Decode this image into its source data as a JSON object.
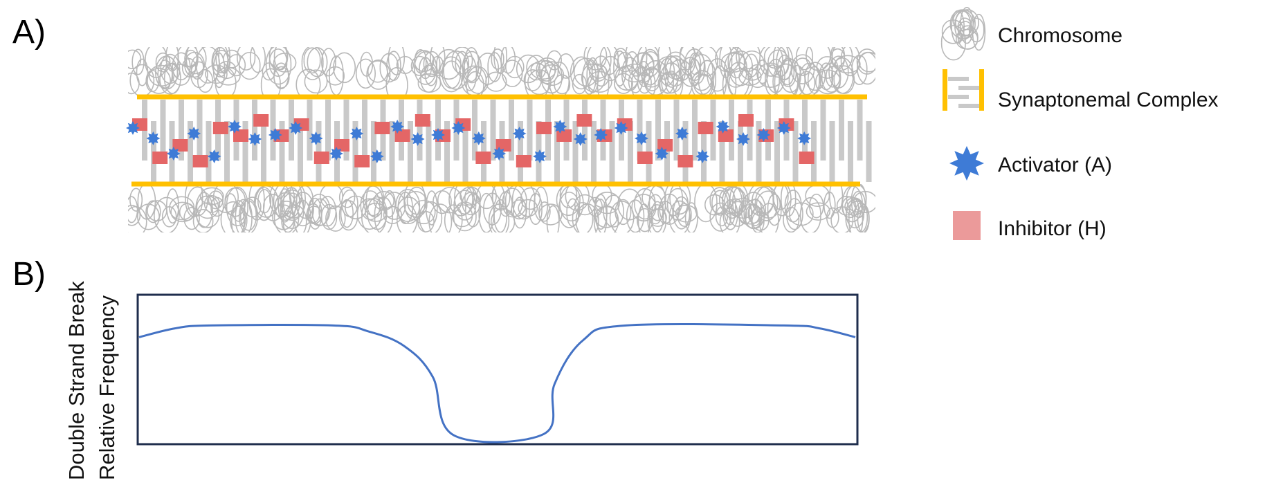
{
  "panels": {
    "a_label": "A)",
    "b_label": "B)"
  },
  "legend": {
    "items": [
      {
        "key": "chromosome",
        "label": "Chromosome",
        "icon": "chromatin-coil-icon",
        "color": "#b8b8b8"
      },
      {
        "key": "synaptonemal",
        "label": "Synaptonemal Complex",
        "icon": "ladder-icon",
        "color": "#ffc000"
      },
      {
        "key": "activator",
        "label": "Activator (A)",
        "icon": "star-icon",
        "color": "#3e7bd6"
      },
      {
        "key": "inhibitor",
        "label": "Inhibitor (H)",
        "icon": "square-icon",
        "color": "#eb9a9a"
      }
    ]
  },
  "colors": {
    "chromosome": "#b8b8b8",
    "axis": "#ffc000",
    "rung": "#c9c9c9",
    "activator": "#3e7bd6",
    "inhibitor": "#e46666",
    "curve": "#4472c4",
    "frame": "#1f2e4d"
  },
  "chart_data": {
    "type": "line",
    "ylabel_line1": "Double Strand Break",
    "ylabel_line2": "Relative Frequency",
    "xlabel": "",
    "series": [
      {
        "values_xy": [
          [
            0.0,
            0.72
          ],
          [
            0.05,
            0.78
          ],
          [
            0.1,
            0.8
          ],
          [
            0.27,
            0.8
          ],
          [
            0.32,
            0.76
          ],
          [
            0.37,
            0.66
          ],
          [
            0.41,
            0.45
          ],
          [
            0.44,
            0.05
          ],
          [
            0.565,
            0.06
          ],
          [
            0.58,
            0.4
          ],
          [
            0.62,
            0.7
          ],
          [
            0.68,
            0.8
          ],
          [
            0.9,
            0.8
          ],
          [
            0.95,
            0.78
          ],
          [
            1.0,
            0.72
          ]
        ]
      }
    ],
    "xlim": [
      0,
      1
    ],
    "ylim": [
      0,
      1
    ],
    "grid": false,
    "ticks": false
  }
}
